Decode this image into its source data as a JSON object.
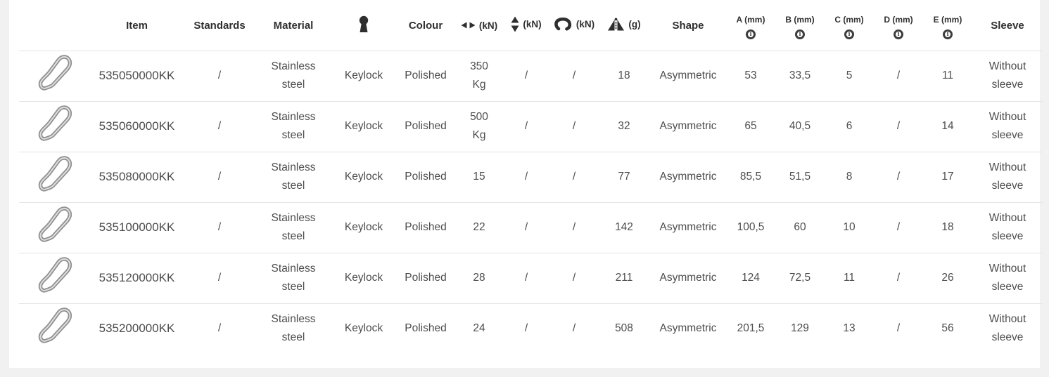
{
  "colors": {
    "page_background": "#f1f1f2",
    "card_background": "#ffffff",
    "header_text": "#2f2f2f",
    "body_text": "#4d4d4d",
    "divider": "#e4e4e4"
  },
  "icons": {
    "gate_type": "keyhole-icon",
    "strength_major": "major-axis-arrows-icon",
    "strength_minor": "minor-axis-arrows-icon",
    "strength_gate_open": "open-gate-icon",
    "weight": "weight-icon",
    "dimension_info": "info-icon",
    "info_glyph": "i",
    "row_thumbnail": "carabiner-photo"
  },
  "table": {
    "header": {
      "item": "Item",
      "standards": "Standards",
      "material": "Material",
      "colour": "Colour",
      "unit_kn": "(kN)",
      "unit_g": "(g)",
      "shape": "Shape",
      "dim_a": "A (mm)",
      "dim_b": "B (mm)",
      "dim_c": "C (mm)",
      "dim_d": "D (mm)",
      "dim_e": "E (mm)",
      "sleeve": "Sleeve"
    },
    "column_keys": [
      "item",
      "standards",
      "material",
      "gate",
      "colour",
      "strength_major",
      "strength_minor",
      "strength_gate_open",
      "weight",
      "shape",
      "dim_a",
      "dim_b",
      "dim_c",
      "dim_d",
      "dim_e",
      "sleeve"
    ],
    "rows": [
      {
        "item": "535050000KK",
        "standards": "/",
        "material": "Stainless steel",
        "gate": "Keylock",
        "colour": "Polished",
        "strength_major": "350 Kg",
        "strength_minor": "/",
        "strength_gate_open": "/",
        "weight": "18",
        "shape": "Asymmetric",
        "dim_a": "53",
        "dim_b": "33,5",
        "dim_c": "5",
        "dim_d": "/",
        "dim_e": "11",
        "sleeve": "Without sleeve"
      },
      {
        "item": "535060000KK",
        "standards": "/",
        "material": "Stainless steel",
        "gate": "Keylock",
        "colour": "Polished",
        "strength_major": "500 Kg",
        "strength_minor": "/",
        "strength_gate_open": "/",
        "weight": "32",
        "shape": "Asymmetric",
        "dim_a": "65",
        "dim_b": "40,5",
        "dim_c": "6",
        "dim_d": "/",
        "dim_e": "14",
        "sleeve": "Without sleeve"
      },
      {
        "item": "535080000KK",
        "standards": "/",
        "material": "Stainless steel",
        "gate": "Keylock",
        "colour": "Polished",
        "strength_major": "15",
        "strength_minor": "/",
        "strength_gate_open": "/",
        "weight": "77",
        "shape": "Asymmetric",
        "dim_a": "85,5",
        "dim_b": "51,5",
        "dim_c": "8",
        "dim_d": "/",
        "dim_e": "17",
        "sleeve": "Without sleeve"
      },
      {
        "item": "535100000KK",
        "standards": "/",
        "material": "Stainless steel",
        "gate": "Keylock",
        "colour": "Polished",
        "strength_major": "22",
        "strength_minor": "/",
        "strength_gate_open": "/",
        "weight": "142",
        "shape": "Asymmetric",
        "dim_a": "100,5",
        "dim_b": "60",
        "dim_c": "10",
        "dim_d": "/",
        "dim_e": "18",
        "sleeve": "Without sleeve"
      },
      {
        "item": "535120000KK",
        "standards": "/",
        "material": "Stainless steel",
        "gate": "Keylock",
        "colour": "Polished",
        "strength_major": "28",
        "strength_minor": "/",
        "strength_gate_open": "/",
        "weight": "211",
        "shape": "Asymmetric",
        "dim_a": "124",
        "dim_b": "72,5",
        "dim_c": "11",
        "dim_d": "/",
        "dim_e": "26",
        "sleeve": "Without sleeve"
      },
      {
        "item": "535200000KK",
        "standards": "/",
        "material": "Stainless steel",
        "gate": "Keylock",
        "colour": "Polished",
        "strength_major": "24",
        "strength_minor": "/",
        "strength_gate_open": "/",
        "weight": "508",
        "shape": "Asymmetric",
        "dim_a": "201,5",
        "dim_b": "129",
        "dim_c": "13",
        "dim_d": "/",
        "dim_e": "56",
        "sleeve": "Without sleeve"
      }
    ]
  }
}
